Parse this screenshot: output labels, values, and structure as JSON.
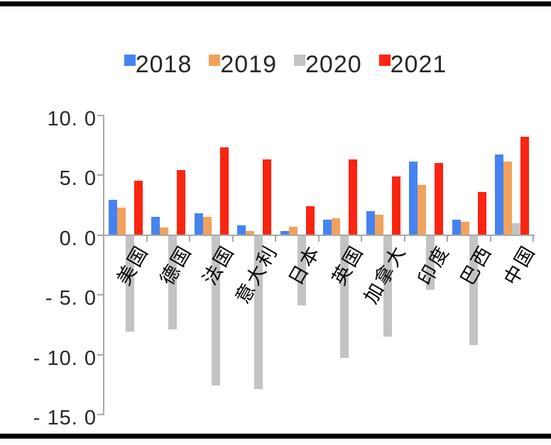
{
  "page": {
    "background": "#ffffff",
    "frame_bar_color": "#000000"
  },
  "legend": {
    "position": "top-center",
    "items": [
      {
        "label": "2018",
        "color": "#4583f2"
      },
      {
        "label": "2019",
        "color": "#f2a25c"
      },
      {
        "label": "2020",
        "color": "#c4c3c3"
      },
      {
        "label": "2021",
        "color": "#fb2411"
      }
    ]
  },
  "y_axis": {
    "tick_labels": [
      "10. 0",
      "5. 0",
      "0. 0",
      "- 5. 0",
      "- 10. 0",
      "- 15. 0"
    ],
    "tick_values": [
      10,
      5,
      0,
      -5,
      -10,
      -15
    ],
    "axis_color": "#a8a8a8",
    "text_color": "#262626"
  },
  "chart_data": {
    "type": "bar",
    "title": "",
    "xlabel": "",
    "ylabel": "",
    "categories": [
      "美国",
      "德国",
      "法国",
      "意大利",
      "日本",
      "英国",
      "加拿大",
      "印度",
      "巴西",
      "中国"
    ],
    "series": [
      {
        "name": "2018",
        "color": "#4583f2",
        "values": [
          2.9,
          1.5,
          1.8,
          0.8,
          0.3,
          1.3,
          2.0,
          6.1,
          1.3,
          6.7
        ]
      },
      {
        "name": "2019",
        "color": "#f2a25c",
        "values": [
          2.3,
          0.6,
          1.5,
          0.3,
          0.7,
          1.4,
          1.7,
          4.2,
          1.1,
          6.1
        ]
      },
      {
        "name": "2020",
        "color": "#c4c3c3",
        "values": [
          -8.0,
          -7.8,
          -12.5,
          -12.8,
          -5.8,
          -10.2,
          -8.4,
          -4.5,
          -9.1,
          1.0
        ]
      },
      {
        "name": "2021",
        "color": "#fb2411",
        "values": [
          4.5,
          5.4,
          7.3,
          6.3,
          2.4,
          6.3,
          4.9,
          6.0,
          3.6,
          8.2
        ]
      }
    ],
    "ylim": [
      -15,
      10
    ],
    "y_tick_step": 5,
    "grid": false,
    "legend_position": "top",
    "bar_orientation": "vertical",
    "category_label_rotation_deg": -60
  }
}
